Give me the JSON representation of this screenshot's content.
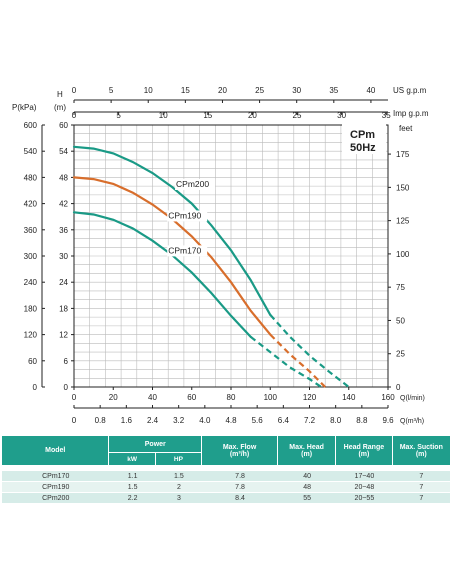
{
  "chart_data": {
    "type": "line",
    "title": "CPm",
    "subtitle": "50Hz",
    "left_axis_pressure": {
      "label": "P(kPa)",
      "range": [
        0,
        600
      ],
      "ticks": [
        0,
        60,
        120,
        180,
        240,
        300,
        360,
        420,
        480,
        540,
        600
      ]
    },
    "left_axis_head": {
      "label_top": "H",
      "label_unit": "(m)",
      "range": [
        0,
        60
      ],
      "ticks": [
        0,
        6,
        12,
        18,
        24,
        30,
        36,
        42,
        48,
        54,
        60
      ]
    },
    "right_axis_feet": {
      "label": "feet",
      "ticks": [
        0,
        25,
        50,
        75,
        100,
        125,
        150,
        175
      ]
    },
    "top_axis_us_gpm": {
      "label": "US  g.p.m",
      "range": [
        0,
        42.3
      ],
      "ticks": [
        0,
        5,
        10,
        15,
        20,
        25,
        30,
        35,
        40
      ]
    },
    "top_axis_imp_gpm": {
      "label": "Imp  g.p.m",
      "range": [
        0,
        35.2
      ],
      "ticks": [
        0,
        5,
        10,
        15,
        20,
        25,
        30,
        35
      ]
    },
    "bottom_axis_lpm": {
      "label": "Q(l/min)",
      "range": [
        0,
        160
      ],
      "ticks": [
        0,
        20,
        40,
        60,
        80,
        100,
        120,
        140,
        160
      ]
    },
    "bottom_axis_m3h": {
      "label": "Q(m³/h)",
      "range": [
        0,
        9.6
      ],
      "ticks": [
        "0",
        "0.8",
        "1.6",
        "2.4",
        "3.2",
        "4.0",
        "4.8",
        "5.6",
        "6.4",
        "7.2",
        "8.0",
        "8.8",
        "9.6"
      ]
    },
    "grid": true,
    "series": [
      {
        "name": "CPm200",
        "color": "#1a9a86",
        "solid": [
          [
            0,
            55
          ],
          [
            10,
            54.6
          ],
          [
            20,
            53.5
          ],
          [
            30,
            51.5
          ],
          [
            40,
            49
          ],
          [
            50,
            45.8
          ],
          [
            60,
            42
          ],
          [
            70,
            37
          ],
          [
            80,
            31.3
          ],
          [
            90,
            24.5
          ],
          [
            100,
            16.5
          ]
        ],
        "dashed": [
          [
            100,
            16.5
          ],
          [
            110,
            11.5
          ],
          [
            120,
            7.2
          ],
          [
            130,
            3.5
          ],
          [
            140,
            0
          ]
        ]
      },
      {
        "name": "CPm190",
        "color": "#d86e2c",
        "solid": [
          [
            0,
            48
          ],
          [
            10,
            47.6
          ],
          [
            20,
            46.5
          ],
          [
            30,
            44.5
          ],
          [
            40,
            41.8
          ],
          [
            50,
            38.5
          ],
          [
            60,
            34.5
          ],
          [
            70,
            29.7
          ],
          [
            80,
            24
          ],
          [
            90,
            17.5
          ],
          [
            100,
            12
          ]
        ],
        "dashed": [
          [
            100,
            12
          ],
          [
            110,
            7.5
          ],
          [
            120,
            3.6
          ],
          [
            128,
            0
          ]
        ]
      },
      {
        "name": "CPm170",
        "color": "#1a9a86",
        "solid": [
          [
            0,
            40
          ],
          [
            10,
            39.5
          ],
          [
            20,
            38.3
          ],
          [
            30,
            36.3
          ],
          [
            40,
            33.5
          ],
          [
            50,
            30.2
          ],
          [
            60,
            26.2
          ],
          [
            70,
            21.5
          ],
          [
            80,
            16.3
          ],
          [
            90,
            11.5
          ]
        ],
        "dashed": [
          [
            90,
            11.5
          ],
          [
            100,
            8
          ],
          [
            110,
            4.5
          ],
          [
            120,
            1.8
          ],
          [
            126,
            0
          ]
        ]
      }
    ]
  },
  "table": {
    "headers": {
      "model": "Model",
      "power": "Power",
      "kw": "kW",
      "hp": "HP",
      "max_flow": "Max. Flow",
      "max_flow_unit": "(m³/h)",
      "max_head": "Max. Head",
      "max_head_unit": "(m)",
      "head_range": "Head Range",
      "head_range_unit": "(m)",
      "max_suction": "Max. Suction",
      "max_suction_unit": "(m)"
    },
    "rows": [
      {
        "model": "CPm170",
        "kw": "1.1",
        "hp": "1.5",
        "max_flow": "7.8",
        "max_head": "40",
        "head_range": "17~40",
        "max_suction": "7"
      },
      {
        "model": "CPm190",
        "kw": "1.5",
        "hp": "2",
        "max_flow": "7.8",
        "max_head": "48",
        "head_range": "20~48",
        "max_suction": "7"
      },
      {
        "model": "CPm200",
        "kw": "2.2",
        "hp": "3",
        "max_flow": "8.4",
        "max_head": "55",
        "head_range": "20~55",
        "max_suction": "7"
      }
    ]
  }
}
